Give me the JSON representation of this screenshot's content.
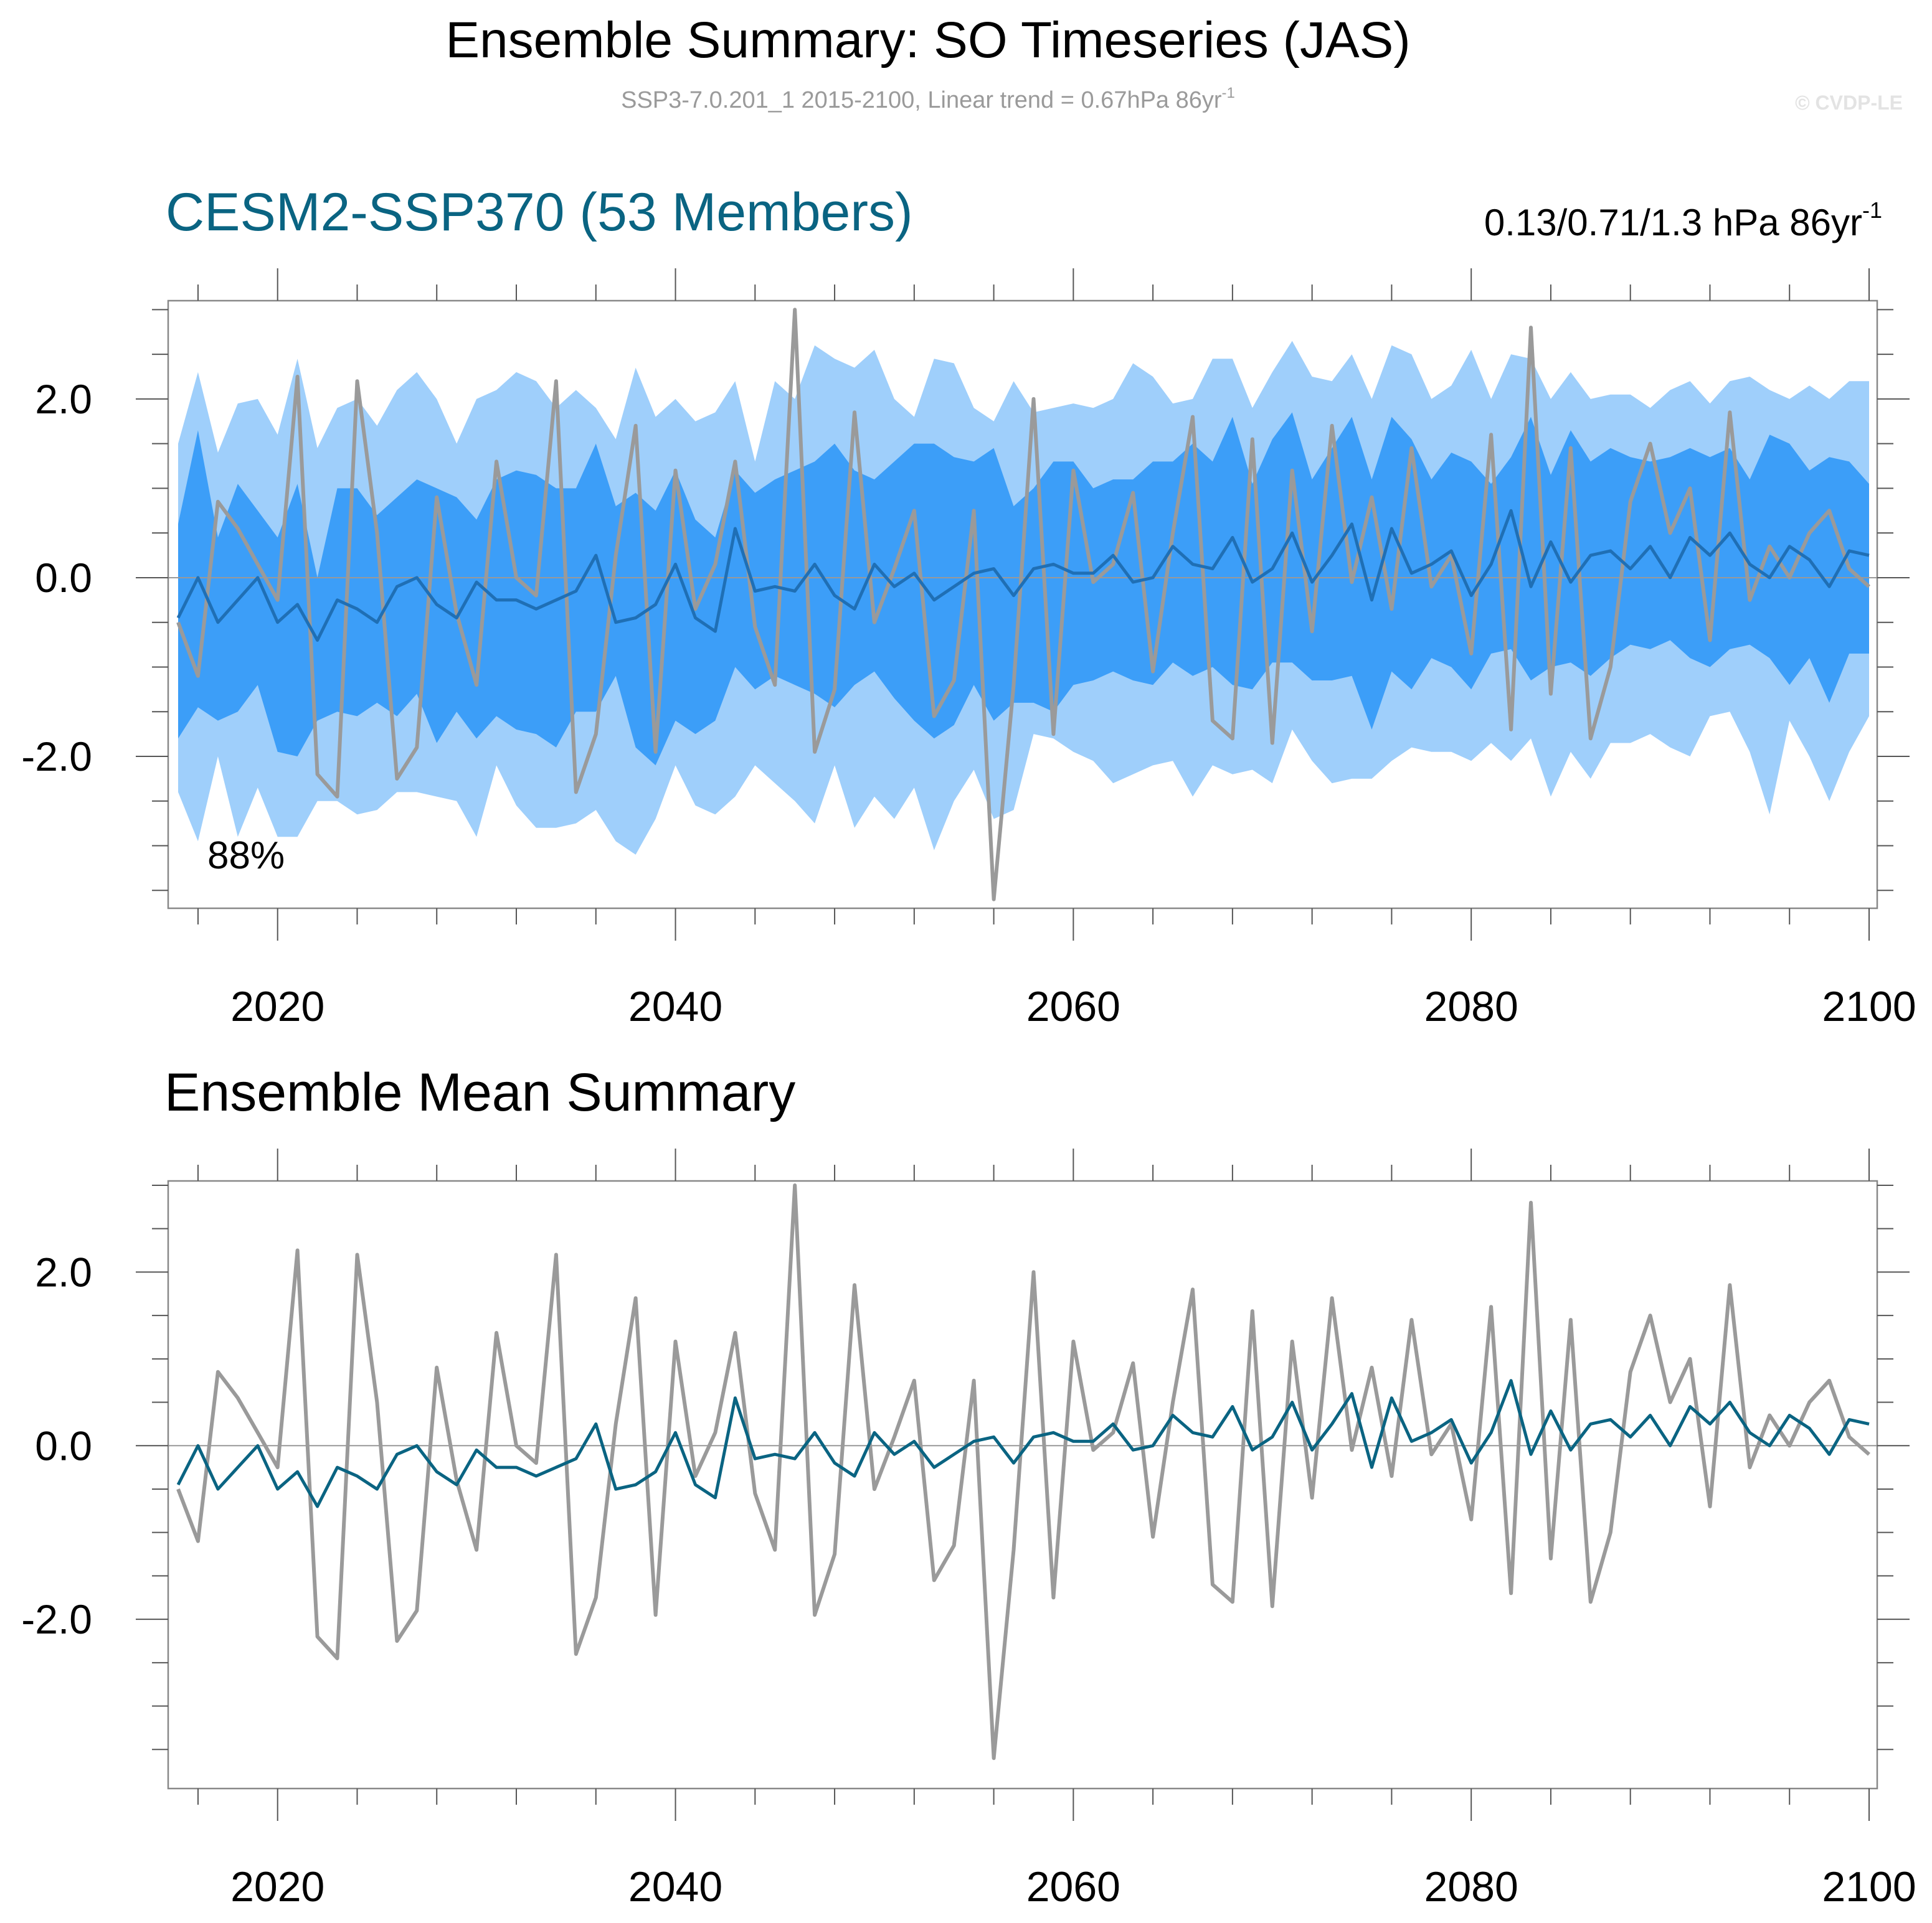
{
  "header": {
    "title": "Ensemble Summary: SO Timeseries (JAS)",
    "subtitle_main": "SSP3-7.0.201_1 2015-2100, Linear trend = 0.67hPa 86yr",
    "subtitle_sup": "-1",
    "watermark": "© CVDP-LE"
  },
  "colors": {
    "outer_band": "#9fcffb",
    "inner_band": "#3c9ef8",
    "ens_mean_top": "#1f6fb5",
    "ens_mean_bottom": "#0a6482",
    "observed": "#9a9a9a",
    "panel_title": "#0a6482",
    "axis": "#555555"
  },
  "chart_data": [
    {
      "type": "area",
      "title": "CESM2-SSP370 (53 Members)",
      "right_label_main": "0.13/0.71/1.3 hPa 86yr",
      "right_label_sup": "-1",
      "annotation": "88%",
      "xlim": [
        2014,
        2100
      ],
      "ylim": [
        -3.7,
        3.1
      ],
      "xticks": [
        2020,
        2040,
        2060,
        2080,
        2100
      ],
      "xtick_labels": [
        "2020",
        "2040",
        "2060",
        "2080",
        "2100"
      ],
      "yticks": [
        2.0,
        0.0,
        -2.0
      ],
      "ytick_labels": [
        "2.0",
        "0.0",
        "-2.0"
      ],
      "zero_line": true,
      "grid": false,
      "x": [
        2015,
        2016,
        2017,
        2018,
        2019,
        2020,
        2021,
        2022,
        2023,
        2024,
        2025,
        2026,
        2027,
        2028,
        2029,
        2030,
        2031,
        2032,
        2033,
        2034,
        2035,
        2036,
        2037,
        2038,
        2039,
        2040,
        2041,
        2042,
        2043,
        2044,
        2045,
        2046,
        2047,
        2048,
        2049,
        2050,
        2051,
        2052,
        2053,
        2054,
        2055,
        2056,
        2057,
        2058,
        2059,
        2060,
        2061,
        2062,
        2063,
        2064,
        2065,
        2066,
        2067,
        2068,
        2069,
        2070,
        2071,
        2072,
        2073,
        2074,
        2075,
        2076,
        2077,
        2078,
        2079,
        2080,
        2081,
        2082,
        2083,
        2084,
        2085,
        2086,
        2087,
        2088,
        2089,
        2090,
        2091,
        2092,
        2093,
        2094,
        2095,
        2096,
        2097,
        2098,
        2099,
        2100
      ],
      "series": [
        {
          "role": "outer_high",
          "values": [
            1.5,
            2.3,
            1.4,
            1.95,
            2.0,
            1.6,
            2.45,
            1.45,
            1.9,
            2.0,
            1.7,
            2.1,
            2.3,
            2.0,
            1.5,
            2.0,
            2.1,
            2.3,
            2.2,
            1.9,
            2.1,
            1.9,
            1.55,
            2.35,
            1.8,
            2.0,
            1.75,
            1.85,
            2.2,
            1.3,
            2.2,
            2.0,
            2.6,
            2.45,
            2.35,
            2.55,
            2.0,
            1.8,
            2.45,
            2.4,
            1.9,
            1.75,
            2.2,
            1.85,
            1.9,
            1.95,
            1.9,
            2.0,
            2.4,
            2.25,
            1.95,
            2.0,
            2.45,
            2.45,
            1.9,
            2.3,
            2.65,
            2.25,
            2.2,
            2.5,
            2.0,
            2.6,
            2.5,
            2.0,
            2.15,
            2.55,
            2.0,
            2.5,
            2.45,
            2.0,
            2.3,
            2.0,
            2.05,
            2.05,
            1.9,
            2.1,
            2.2,
            1.95,
            2.2,
            2.25,
            2.1,
            2.0,
            2.15,
            2.0,
            2.2,
            2.2
          ]
        },
        {
          "role": "inner_high",
          "values": [
            0.6,
            1.65,
            0.45,
            1.05,
            0.75,
            0.45,
            1.05,
            0.0,
            1.0,
            1.0,
            0.7,
            0.9,
            1.1,
            1.0,
            0.9,
            0.65,
            1.1,
            1.2,
            1.15,
            1.0,
            1.0,
            1.5,
            0.8,
            0.95,
            0.75,
            1.2,
            0.65,
            0.45,
            1.2,
            0.95,
            1.1,
            1.2,
            1.3,
            1.5,
            1.2,
            1.1,
            1.3,
            1.5,
            1.5,
            1.35,
            1.3,
            1.45,
            0.8,
            1.0,
            1.3,
            1.3,
            1.0,
            1.1,
            1.1,
            1.3,
            1.3,
            1.5,
            1.3,
            1.8,
            1.05,
            1.55,
            1.85,
            1.1,
            1.45,
            1.8,
            1.1,
            1.8,
            1.55,
            1.1,
            1.4,
            1.3,
            1.05,
            1.35,
            1.8,
            1.15,
            1.65,
            1.3,
            1.45,
            1.35,
            1.3,
            1.35,
            1.45,
            1.35,
            1.45,
            1.1,
            1.6,
            1.5,
            1.2,
            1.35,
            1.3,
            1.05
          ]
        },
        {
          "role": "inner_low",
          "values": [
            -1.8,
            -1.45,
            -1.6,
            -1.5,
            -1.2,
            -1.95,
            -2.0,
            -1.6,
            -1.5,
            -1.55,
            -1.4,
            -1.55,
            -1.3,
            -1.85,
            -1.5,
            -1.8,
            -1.55,
            -1.7,
            -1.75,
            -1.9,
            -1.5,
            -1.5,
            -1.1,
            -1.9,
            -2.1,
            -1.6,
            -1.75,
            -1.6,
            -1.0,
            -1.25,
            -1.1,
            -1.2,
            -1.3,
            -1.45,
            -1.2,
            -1.05,
            -1.35,
            -1.6,
            -1.8,
            -1.65,
            -1.2,
            -1.6,
            -1.4,
            -1.4,
            -1.5,
            -1.2,
            -1.15,
            -1.05,
            -1.15,
            -1.2,
            -0.95,
            -1.1,
            -1.0,
            -1.2,
            -1.25,
            -0.95,
            -0.95,
            -1.15,
            -1.15,
            -1.1,
            -1.7,
            -1.05,
            -1.25,
            -0.9,
            -1.0,
            -1.25,
            -0.85,
            -0.8,
            -1.15,
            -1.0,
            -0.95,
            -1.1,
            -0.9,
            -0.75,
            -0.8,
            -0.7,
            -0.9,
            -1.0,
            -0.8,
            -0.75,
            -0.9,
            -1.2,
            -0.9,
            -1.4,
            -0.85,
            -0.85
          ]
        },
        {
          "role": "outer_low",
          "values": [
            -2.4,
            -2.95,
            -2.0,
            -2.9,
            -2.35,
            -2.9,
            -2.9,
            -2.5,
            -2.5,
            -2.65,
            -2.6,
            -2.4,
            -2.4,
            -2.45,
            -2.5,
            -2.9,
            -2.1,
            -2.55,
            -2.8,
            -2.8,
            -2.75,
            -2.6,
            -2.95,
            -3.1,
            -2.7,
            -2.1,
            -2.55,
            -2.65,
            -2.45,
            -2.1,
            -2.3,
            -2.5,
            -2.75,
            -2.1,
            -2.8,
            -2.45,
            -2.7,
            -2.35,
            -3.05,
            -2.5,
            -2.15,
            -2.7,
            -2.6,
            -1.75,
            -1.8,
            -1.95,
            -2.05,
            -2.3,
            -2.2,
            -2.1,
            -2.05,
            -2.45,
            -2.1,
            -2.2,
            -2.15,
            -2.3,
            -1.7,
            -2.05,
            -2.3,
            -2.25,
            -2.25,
            -2.05,
            -1.9,
            -1.95,
            -1.95,
            -2.05,
            -1.85,
            -2.05,
            -1.8,
            -2.45,
            -1.95,
            -2.25,
            -1.85,
            -1.85,
            -1.75,
            -1.9,
            -2.0,
            -1.55,
            -1.5,
            -1.95,
            -2.65,
            -1.6,
            -2.0,
            -2.5,
            -1.95,
            -1.55
          ]
        },
        {
          "role": "ensemble_mean",
          "values": [
            -0.45,
            0.0,
            -0.5,
            -0.25,
            0.0,
            -0.5,
            -0.3,
            -0.7,
            -0.25,
            -0.35,
            -0.5,
            -0.1,
            0.0,
            -0.3,
            -0.45,
            -0.05,
            -0.25,
            -0.25,
            -0.35,
            -0.25,
            -0.15,
            0.25,
            -0.5,
            -0.45,
            -0.3,
            0.15,
            -0.45,
            -0.6,
            0.55,
            -0.15,
            -0.1,
            -0.15,
            0.15,
            -0.2,
            -0.35,
            0.15,
            -0.1,
            0.05,
            -0.25,
            -0.1,
            0.05,
            0.1,
            -0.2,
            0.1,
            0.15,
            0.05,
            0.05,
            0.25,
            -0.05,
            0.0,
            0.35,
            0.15,
            0.1,
            0.45,
            -0.05,
            0.1,
            0.5,
            -0.05,
            0.25,
            0.6,
            -0.25,
            0.55,
            0.05,
            0.15,
            0.3,
            -0.2,
            0.15,
            0.75,
            -0.1,
            0.4,
            -0.05,
            0.25,
            0.3,
            0.1,
            0.35,
            0.0,
            0.45,
            0.25,
            0.5,
            0.15,
            0.0,
            0.35,
            0.2,
            -0.1,
            0.3,
            0.25
          ]
        },
        {
          "role": "observed",
          "values": [
            -0.5,
            -1.1,
            0.85,
            0.55,
            0.15,
            -0.25,
            2.25,
            -2.2,
            -2.45,
            2.2,
            0.5,
            -2.25,
            -1.9,
            0.9,
            -0.4,
            -1.2,
            1.3,
            0.0,
            -0.2,
            2.2,
            -2.4,
            -1.75,
            0.25,
            1.7,
            -1.95,
            1.2,
            -0.35,
            0.15,
            1.3,
            -0.55,
            -1.2,
            3.0,
            -1.95,
            -1.25,
            1.85,
            -0.5,
            0.1,
            0.75,
            -1.55,
            -1.15,
            0.75,
            -3.6,
            -1.2,
            2.0,
            -1.75,
            1.2,
            -0.05,
            0.15,
            0.95,
            -1.05,
            0.5,
            1.8,
            -1.6,
            -1.8,
            1.55,
            -1.85,
            1.2,
            -0.6,
            1.7,
            -0.05,
            0.9,
            -0.35,
            1.45,
            -0.1,
            0.25,
            -0.85,
            1.6,
            -1.7,
            2.8,
            -1.3,
            1.45,
            -1.8,
            -1.0,
            0.85,
            1.5,
            0.5,
            1.0,
            -0.7,
            1.85,
            -0.25,
            0.35,
            0.0,
            0.5,
            0.75,
            0.1,
            -0.1
          ]
        }
      ]
    },
    {
      "type": "line",
      "title": "Ensemble Mean Summary",
      "xlim": [
        2014,
        2100
      ],
      "ylim": [
        -3.95,
        3.05
      ],
      "xticks": [
        2020,
        2040,
        2060,
        2080,
        2100
      ],
      "xtick_labels": [
        "2020",
        "2040",
        "2060",
        "2080",
        "2100"
      ],
      "yticks": [
        2.0,
        0.0,
        -2.0
      ],
      "ytick_labels": [
        "2.0",
        "0.0",
        "-2.0"
      ],
      "zero_line": true,
      "grid": false,
      "series_ref": [
        "ensemble_mean",
        "observed"
      ]
    }
  ]
}
